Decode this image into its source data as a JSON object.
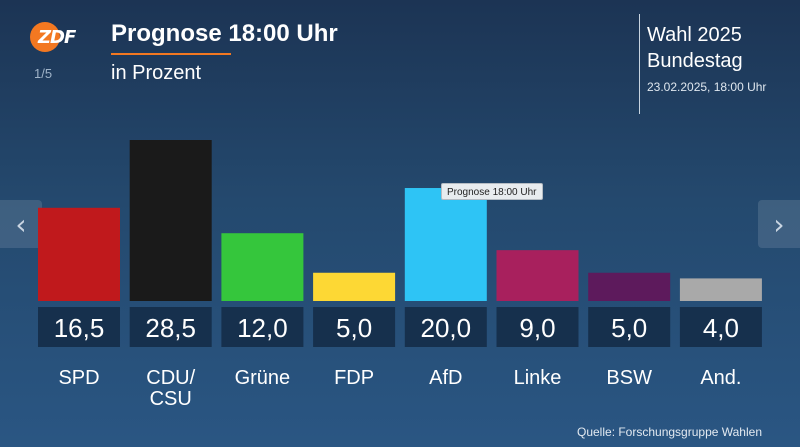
{
  "header": {
    "logo_text": "ZDF",
    "page_indicator": "1/5",
    "title": "Prognose 18:00 Uhr",
    "subtitle": "in Prozent",
    "election_line1": "Wahl 2025",
    "election_line2": "Bundestag",
    "election_date": "23.02.2025, 18:00 Uhr"
  },
  "navigation": {
    "prev_icon": "chevron-left-icon",
    "next_icon": "chevron-right-icon"
  },
  "tooltip": {
    "text": "Prognose 18:00 Uhr"
  },
  "source": "Quelle: Forschungsgruppe Wahlen",
  "colors": {
    "accent": "#f37821",
    "value_box": "#16304d"
  },
  "chart_data": {
    "type": "bar",
    "title": "Prognose 18:00 Uhr",
    "subtitle": "in Prozent",
    "ylim": [
      0,
      28.5
    ],
    "categories": [
      "SPD",
      "CDU/\nCSU",
      "Grüne",
      "FDP",
      "AfD",
      "Linke",
      "BSW",
      "And."
    ],
    "values": [
      16.5,
      28.5,
      12.0,
      5.0,
      20.0,
      9.0,
      5.0,
      4.0
    ],
    "value_labels": [
      "16,5",
      "28,5",
      "12,0",
      "5,0",
      "20,0",
      "9,0",
      "5,0",
      "4,0"
    ],
    "colors": [
      "#c0191c",
      "#1a1a1a",
      "#35c63c",
      "#fdd834",
      "#2ec4f5",
      "#a8205d",
      "#5d1a5c",
      "#a9a9a9"
    ]
  }
}
